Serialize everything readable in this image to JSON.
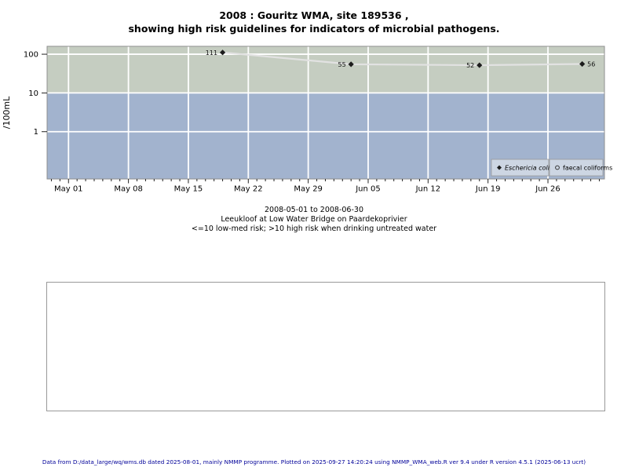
{
  "title": {
    "line1": "2008 : Gouritz WMA, site 189536 ,",
    "line2": "showing high risk guidelines for indicators of microbial pathogens."
  },
  "captions": {
    "period": "2008-05-01 to 2008-06-30",
    "site": "Leeukloof at Low Water Bridge on Paardekoprivier",
    "risk": "<=10 low-med risk; >10 high risk when drinking untreated water"
  },
  "footer": {
    "text": "Data from D:/data_large/wq/wms.db dated 2025-08-01, mainly NMMP programme. Plotted on 2025-09-27 14:20:24 using NMMP_WMA_web.R ver 9.4 under R version 4.5.1 (2025-06-13 ucrt)"
  },
  "chart_data": {
    "type": "scatter",
    "title": "2008 : Gouritz WMA, site 189536 , showing high risk guidelines for indicators of microbial pathogens.",
    "xlabel": "",
    "ylabel": "/100mL",
    "x_axis": {
      "origin_date": "2008-05-01",
      "tick_labels": [
        "May 01",
        "May 08",
        "May 15",
        "May 22",
        "May 29",
        "Jun 05",
        "Jun 12",
        "Jun 19",
        "Jun 26"
      ],
      "tick_interval_days": 7,
      "minor_tick_interval_days": 1,
      "xlim_days": [
        -2.5,
        62.6
      ]
    },
    "y_axis": {
      "scale": "log10",
      "tick_labels": [
        "1",
        "10",
        "100"
      ],
      "tick_values": [
        1,
        10,
        100
      ],
      "ylim": [
        0.06,
        160
      ]
    },
    "bands": [
      {
        "name": "high-risk",
        "range": [
          10,
          160
        ],
        "color": "#c5cdc1"
      },
      {
        "name": "low-med-risk",
        "range": [
          0.06,
          10
        ],
        "color": "#a2b3ce"
      }
    ],
    "series": [
      {
        "name": "Eschericia coli",
        "symbol": "filled-diamond",
        "italic": true,
        "points": [
          {
            "date": "2008-05-19",
            "value": 111
          },
          {
            "date": "2008-06-03",
            "value": 55
          },
          {
            "date": "2008-06-18",
            "value": 52
          },
          {
            "date": "2008-06-30",
            "value": 56
          }
        ]
      },
      {
        "name": "faecal coliforms",
        "symbol": "open-circle",
        "italic": false,
        "points": []
      }
    ],
    "legend": {
      "position": "bottom-right"
    },
    "grid": true,
    "colors": {
      "gridline": "#ffffff",
      "point": "#1c1c1c",
      "line": "#e2e2e2",
      "legend_bg": "#cdd6e3",
      "panel_border": "#8f8f8f",
      "tick": "#222222"
    }
  }
}
